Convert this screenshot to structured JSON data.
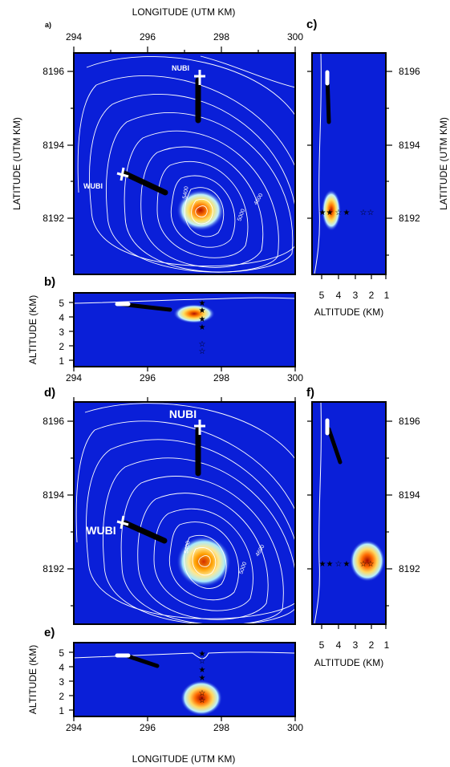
{
  "axis_labels": {
    "longitude": "LONGITUDE (UTM KM)",
    "latitude": "LATITUDE (UTM KM)",
    "altitude": "ALTITUDE (KM)"
  },
  "panel_letters": {
    "a": "a)",
    "b": "b)",
    "c": "c)",
    "d": "d)",
    "e": "e)",
    "f": "f)"
  },
  "ticks": {
    "longitude": [
      "294",
      "296",
      "298",
      "300"
    ],
    "latitude": [
      "8196",
      "8194",
      "8192"
    ],
    "altitude_vertical": [
      "5",
      "4",
      "3",
      "2",
      "1"
    ],
    "altitude_horizontal": [
      "5",
      "4",
      "3",
      "2",
      "1"
    ]
  },
  "stations": {
    "nubi": "NUBI",
    "wubi": "WUBI"
  },
  "contour_labels": {
    "c5400": "5400",
    "c5000": "5000",
    "c4600": "4600"
  },
  "colors": {
    "background_field": "#0a1fd8",
    "hotspot_core": "#c81e00",
    "hotspot_mid": "#ffb300",
    "hotspot_outer": "#e8f8ff",
    "contour": "#ffffff",
    "frame": "#000000"
  },
  "stars": {
    "longitude": 297.5,
    "altitudes_km": [
      5.0,
      4.5,
      4.0,
      3.5,
      2.5,
      2.0
    ]
  },
  "source_top": {
    "longitude": 297.3,
    "latitude": 8192.3,
    "altitude_km": 4.2
  },
  "source_bottom": {
    "longitude": 297.5,
    "latitude": 8192.2,
    "altitude_km": 2.2
  }
}
